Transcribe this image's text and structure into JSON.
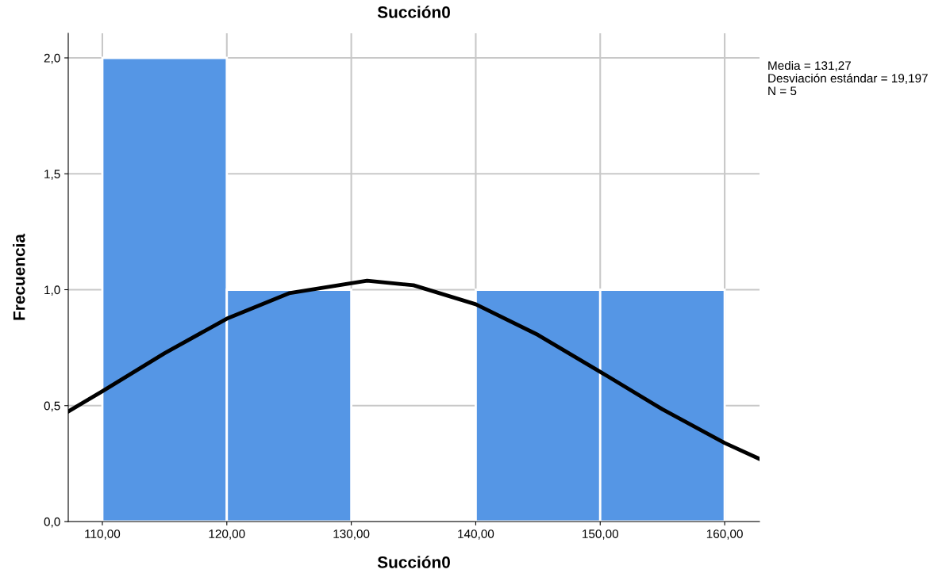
{
  "chart_data": {
    "type": "histogram",
    "title": "Succión0",
    "xlabel": "Succión0",
    "ylabel": "Frecuencia",
    "bins": [
      110,
      120,
      130,
      140,
      150,
      160
    ],
    "values": [
      2,
      1,
      0,
      1,
      1
    ],
    "color": "#5596e5",
    "series": [
      {
        "type": "line",
        "color": "#000000",
        "x": [
          107.26,
          110,
          115,
          120,
          125,
          131.27,
          135,
          140,
          145,
          150,
          155,
          160,
          162.8
        ],
        "values": [
          0.475,
          0.562,
          0.726,
          0.875,
          0.985,
          1.039,
          1.019,
          0.937,
          0.805,
          0.646,
          0.484,
          0.339,
          0.27
        ]
      }
    ],
    "xlim": [
      107.26,
      162.8
    ],
    "ylim": [
      0,
      2.106
    ],
    "xticks": [
      {
        "value": 110,
        "label": "110,00"
      },
      {
        "value": 120,
        "label": "120,00"
      },
      {
        "value": 130,
        "label": "130,00"
      },
      {
        "value": 140,
        "label": "140,00"
      },
      {
        "value": 150,
        "label": "150,00"
      },
      {
        "value": 160,
        "label": "160,00"
      }
    ],
    "yticks": [
      {
        "value": 0,
        "label": "0,0"
      },
      {
        "value": 0.5,
        "label": "0,5"
      },
      {
        "value": 1,
        "label": "1,0"
      },
      {
        "value": 1.5,
        "label": "1,5"
      },
      {
        "value": 2,
        "label": "2,0"
      }
    ],
    "grid": true,
    "line_style": "solid",
    "marker": "none",
    "annotations": [
      "Media = 131,27",
      "Desviación estándar = 19,197",
      "N = 5"
    ]
  }
}
